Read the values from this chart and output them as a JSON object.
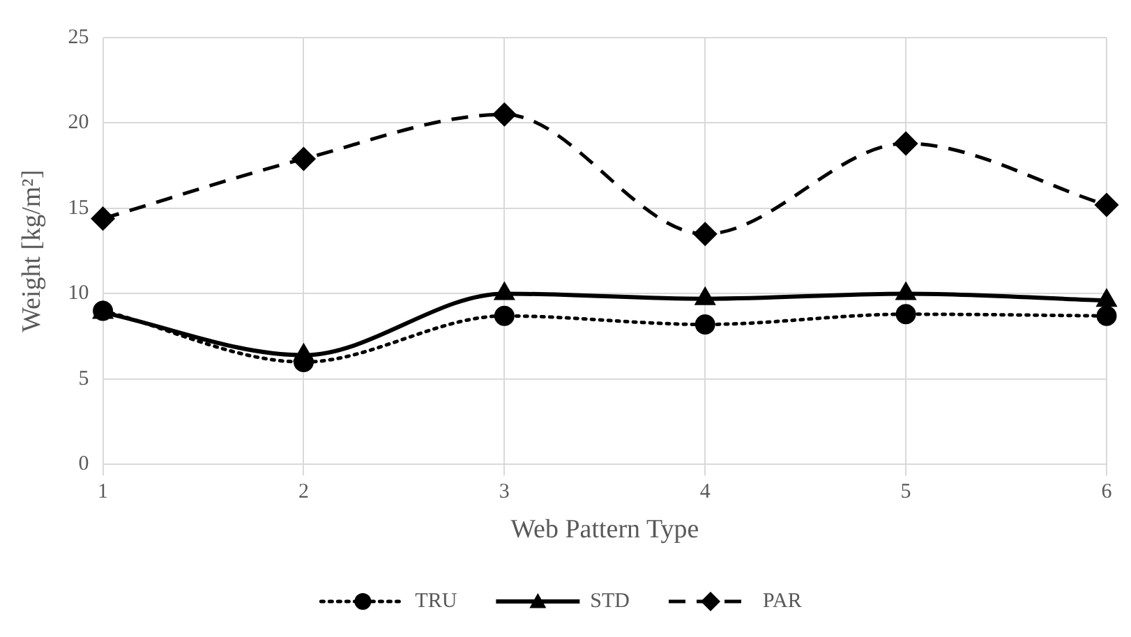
{
  "chart_data": {
    "type": "line",
    "xlabel": "Web Pattern Type",
    "ylabel": "Weight [kg/m²]",
    "categories": [
      "1",
      "2",
      "3",
      "4",
      "5",
      "6"
    ],
    "ylim": [
      0,
      25
    ],
    "yticks": [
      0,
      5,
      10,
      15,
      20,
      25
    ],
    "grid": true,
    "legend": "bottom",
    "series": [
      {
        "name": "TRU",
        "color": "#000000",
        "marker": "circle",
        "line_style": "dotted",
        "values": [
          9.0,
          6.0,
          8.7,
          8.2,
          8.8,
          8.7
        ]
      },
      {
        "name": "STD",
        "color": "#000000",
        "marker": "triangle",
        "line_style": "solid",
        "values": [
          8.9,
          6.4,
          10.0,
          9.7,
          10.0,
          9.6
        ]
      },
      {
        "name": "PAR",
        "color": "#000000",
        "marker": "diamond",
        "line_style": "dashed",
        "values": [
          14.4,
          17.9,
          20.5,
          13.5,
          18.8,
          15.2
        ]
      }
    ]
  }
}
